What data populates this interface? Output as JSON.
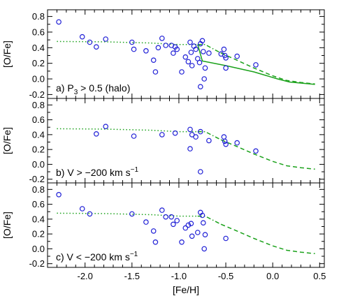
{
  "chart_data": {
    "type": "scatter",
    "xlabel": "[Fe/H]",
    "ylabel": "[O/Fe]",
    "xlim": [
      -2.4,
      0.55
    ],
    "ylim": [
      -0.25,
      0.85
    ],
    "x_ticks": [
      "-2.0",
      "-1.5",
      "-1.0",
      "-0.5",
      "0.0",
      "0.5"
    ],
    "x_tick_values": [
      -2.0,
      -1.5,
      -1.0,
      -0.5,
      0.0,
      0.5
    ],
    "y_ticks": [
      "-0.2",
      "0.0",
      "0.2",
      "0.4",
      "0.6",
      "0.8"
    ],
    "y_tick_values": [
      -0.2,
      0.0,
      0.2,
      0.4,
      0.6,
      0.8
    ],
    "marker_color": "#1f1fd6",
    "line_color": "#1aa11a",
    "panels": [
      {
        "label": "a) P",
        "label_sub": "3",
        "label_rest": " > 0.5 (halo)",
        "points": [
          [
            -2.28,
            0.73
          ],
          [
            -2.03,
            0.54
          ],
          [
            -1.95,
            0.47
          ],
          [
            -1.88,
            0.41
          ],
          [
            -1.78,
            0.51
          ],
          [
            -1.5,
            0.47
          ],
          [
            -1.48,
            0.38
          ],
          [
            -1.35,
            0.36
          ],
          [
            -1.27,
            0.24
          ],
          [
            -1.25,
            0.09
          ],
          [
            -1.22,
            0.4
          ],
          [
            -1.18,
            0.52
          ],
          [
            -1.14,
            0.43
          ],
          [
            -1.08,
            0.43
          ],
          [
            -1.06,
            0.33
          ],
          [
            -1.04,
            0.41
          ],
          [
            -1.02,
            0.38
          ],
          [
            -0.97,
            0.09
          ],
          [
            -0.93,
            0.28
          ],
          [
            -0.9,
            0.22
          ],
          [
            -0.88,
            0.47
          ],
          [
            -0.87,
            0.34
          ],
          [
            -0.86,
            0.17
          ],
          [
            -0.84,
            0.42
          ],
          [
            -0.82,
            0.38
          ],
          [
            -0.8,
            0.26
          ],
          [
            -0.78,
            0.21
          ],
          [
            -0.77,
            0.45
          ],
          [
            -0.77,
            -0.1
          ],
          [
            -0.75,
            0.49
          ],
          [
            -0.74,
            0.35
          ],
          [
            -0.73,
            0.0
          ],
          [
            -0.72,
            0.14
          ],
          [
            -0.68,
            0.33
          ],
          [
            -0.55,
            0.32
          ],
          [
            -0.52,
            0.38
          ],
          [
            -0.51,
            0.3
          ],
          [
            -0.5,
            0.27
          ],
          [
            -0.5,
            0.14
          ],
          [
            -0.38,
            0.29
          ],
          [
            -0.18,
            0.18
          ]
        ],
        "dotted": [
          [
            -2.3,
            0.48
          ],
          [
            -1.8,
            0.475
          ],
          [
            -1.3,
            0.46
          ],
          [
            -1.0,
            0.44
          ],
          [
            -0.8,
            0.44
          ]
        ],
        "dashdot": [
          [
            -0.8,
            0.44
          ],
          [
            -0.72,
            0.44
          ],
          [
            -0.55,
            0.33
          ]
        ],
        "dashed": [
          [
            -0.55,
            0.33
          ],
          [
            -0.4,
            0.25
          ],
          [
            -0.2,
            0.14
          ],
          [
            0.0,
            0.04
          ],
          [
            0.15,
            -0.02
          ],
          [
            0.3,
            -0.045
          ],
          [
            0.45,
            -0.065
          ]
        ],
        "solid": [
          [
            -0.8,
            0.44
          ],
          [
            -0.75,
            0.23
          ],
          [
            -0.5,
            0.17
          ],
          [
            -0.2,
            0.09
          ],
          [
            0.05,
            0.0
          ],
          [
            0.18,
            -0.04
          ],
          [
            0.45,
            -0.07
          ]
        ]
      },
      {
        "label": "b) V > −200 km s",
        "label_sup": "−1",
        "points": [
          [
            -1.88,
            0.41
          ],
          [
            -1.78,
            0.51
          ],
          [
            -1.48,
            0.38
          ],
          [
            -1.18,
            0.4
          ],
          [
            -1.04,
            0.42
          ],
          [
            -0.88,
            0.47
          ],
          [
            -0.88,
            0.21
          ],
          [
            -0.86,
            0.4
          ],
          [
            -0.82,
            0.37
          ],
          [
            -0.77,
            0.44
          ],
          [
            -0.77,
            -0.1
          ],
          [
            -0.68,
            0.32
          ],
          [
            -0.52,
            0.37
          ],
          [
            -0.51,
            0.31
          ],
          [
            -0.5,
            0.27
          ],
          [
            -0.38,
            0.29
          ],
          [
            -0.18,
            0.18
          ]
        ],
        "dotted": [
          [
            -2.3,
            0.48
          ],
          [
            -1.8,
            0.475
          ],
          [
            -1.3,
            0.46
          ],
          [
            -1.0,
            0.44
          ],
          [
            -0.8,
            0.44
          ]
        ],
        "dashdot": [
          [
            -0.8,
            0.44
          ],
          [
            -0.72,
            0.44
          ],
          [
            -0.55,
            0.33
          ]
        ],
        "dashed": [
          [
            -0.55,
            0.33
          ],
          [
            -0.4,
            0.25
          ],
          [
            -0.2,
            0.14
          ],
          [
            0.0,
            0.04
          ],
          [
            0.15,
            -0.02
          ],
          [
            0.3,
            -0.045
          ],
          [
            0.45,
            -0.065
          ]
        ],
        "solid": []
      },
      {
        "label": "c) V < −200 km s",
        "label_sup": "−1",
        "points": [
          [
            -2.28,
            0.73
          ],
          [
            -2.03,
            0.54
          ],
          [
            -1.95,
            0.47
          ],
          [
            -1.5,
            0.47
          ],
          [
            -1.35,
            0.36
          ],
          [
            -1.27,
            0.24
          ],
          [
            -1.25,
            0.09
          ],
          [
            -1.18,
            0.52
          ],
          [
            -1.14,
            0.43
          ],
          [
            -1.08,
            0.43
          ],
          [
            -1.06,
            0.33
          ],
          [
            -1.02,
            0.38
          ],
          [
            -0.97,
            0.09
          ],
          [
            -0.93,
            0.28
          ],
          [
            -0.9,
            0.32
          ],
          [
            -0.87,
            0.34
          ],
          [
            -0.86,
            0.17
          ],
          [
            -0.8,
            0.22
          ],
          [
            -0.77,
            0.49
          ],
          [
            -0.75,
            0.45
          ],
          [
            -0.74,
            0.35
          ],
          [
            -0.73,
            0.0
          ],
          [
            -0.72,
            0.19
          ],
          [
            -0.5,
            0.14
          ]
        ],
        "dotted": [
          [
            -2.3,
            0.48
          ],
          [
            -1.8,
            0.475
          ],
          [
            -1.3,
            0.46
          ],
          [
            -1.0,
            0.44
          ],
          [
            -0.8,
            0.44
          ]
        ],
        "dashdot": [
          [
            -0.8,
            0.44
          ],
          [
            -0.72,
            0.44
          ],
          [
            -0.55,
            0.33
          ]
        ],
        "dashed": [
          [
            -0.55,
            0.33
          ],
          [
            -0.4,
            0.25
          ],
          [
            -0.2,
            0.14
          ],
          [
            0.0,
            0.04
          ],
          [
            0.15,
            -0.02
          ],
          [
            0.3,
            -0.045
          ],
          [
            0.45,
            -0.065
          ]
        ],
        "solid": []
      }
    ]
  }
}
